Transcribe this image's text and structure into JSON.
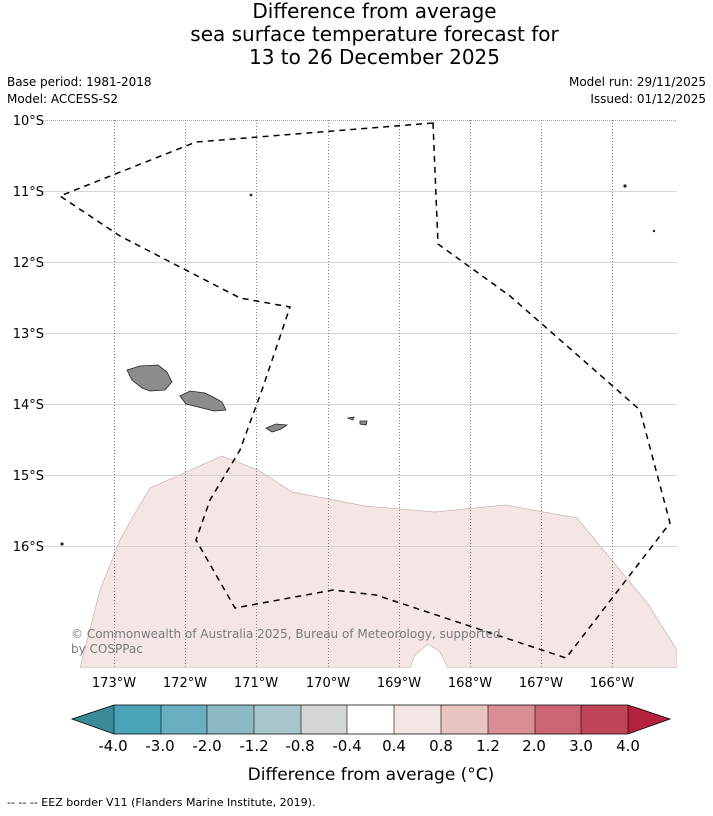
{
  "title": {
    "line1": "Difference from average",
    "line2": "sea surface temperature forecast for",
    "line3": "13 to 26 December 2025"
  },
  "meta": {
    "base_period": "Base period: 1981-2018",
    "model": "Model: ACCESS-S2",
    "model_run": "Model run: 29/11/2025",
    "issued": "Issued: 01/12/2025"
  },
  "map": {
    "lat_labels": [
      "10°S",
      "11°S",
      "12°S",
      "13°S",
      "14°S",
      "15°S",
      "16°S"
    ],
    "lon_labels": [
      "173°W",
      "172°W",
      "171°W",
      "170°W",
      "169°W",
      "168°W",
      "167°W",
      "166°W"
    ],
    "copyright_line1": "© Commonwealth of Australia 2025, Bureau of Meteorology, supported",
    "copyright_line2": "by COSPPac",
    "anomaly_fill_color": "#f4e6e5",
    "land_color": "#8c8c8c"
  },
  "colorbar": {
    "tick_labels": [
      "-4.0",
      "-3.0",
      "-2.0",
      "-1.2",
      "-0.8",
      "-0.4",
      "0.4",
      "0.8",
      "1.2",
      "2.0",
      "3.0",
      "4.0"
    ],
    "colors": [
      "#3c8a97",
      "#4aa5b8",
      "#6aafc0",
      "#8db9c4",
      "#a8c7cc",
      "#d3d6d6",
      "#ffffff",
      "#f4e6e5",
      "#e9c5c2",
      "#d98e96",
      "#cc6473",
      "#c14558",
      "#b5213e"
    ],
    "label": "Difference from average (°C)"
  },
  "footer": {
    "legend": "--  --  -- EEZ border V11 (Flanders Marine Institute, 2019)."
  }
}
